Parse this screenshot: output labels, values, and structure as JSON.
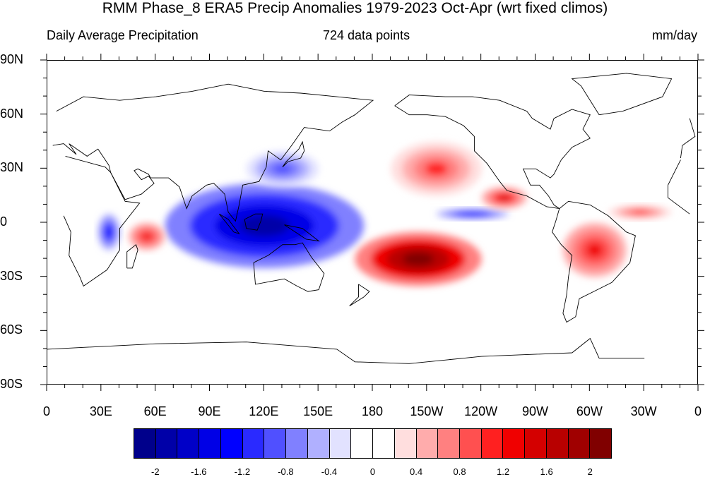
{
  "title": "RMM Phase_8 ERA5 Precip Anomalies 1979-2023 Oct-Apr (wrt fixed climos)",
  "subtitle_left": "Daily Average Precipitation",
  "subtitle_center": "724 data points",
  "subtitle_right": "mm/day",
  "map": {
    "lat_labels": [
      "90N",
      "60N",
      "30N",
      "0",
      "30S",
      "60S",
      "90S"
    ],
    "lon_labels": [
      "0",
      "30E",
      "60E",
      "90E",
      "120E",
      "150E",
      "180",
      "150W",
      "120W",
      "90W",
      "60W",
      "30W",
      "0"
    ],
    "anomaly_regions": [
      {
        "name": "Indian Ocean / Maritime Continent dry",
        "lon": [
          65,
          175
        ],
        "lat": [
          -25,
          22
        ],
        "sign": "negative",
        "peak": -2.0
      },
      {
        "name": "East Africa dry",
        "lon": [
          28,
          40
        ],
        "lat": [
          -15,
          5
        ],
        "sign": "negative",
        "peak": -1.4
      },
      {
        "name": "East Asia / NW Pacific dry",
        "lon": [
          110,
          150
        ],
        "lat": [
          20,
          40
        ],
        "sign": "negative",
        "peak": -1.0
      },
      {
        "name": "Equatorial eastern Pacific dry",
        "lon": [
          215,
          255
        ],
        "lat": [
          2,
          8
        ],
        "sign": "negative",
        "peak": -1.4
      },
      {
        "name": "SPCZ wet",
        "lon": [
          170,
          240
        ],
        "lat": [
          -35,
          -5
        ],
        "sign": "positive",
        "peak": 2.2
      },
      {
        "name": "North Pacific wet",
        "lon": [
          190,
          240
        ],
        "lat": [
          15,
          45
        ],
        "sign": "positive",
        "peak": 1.0
      },
      {
        "name": "Subtropical NE Pacific wet",
        "lon": [
          240,
          265
        ],
        "lat": [
          8,
          20
        ],
        "sign": "positive",
        "peak": 1.4
      },
      {
        "name": "Western Indian Ocean wet",
        "lon": [
          45,
          65
        ],
        "lat": [
          -15,
          0
        ],
        "sign": "positive",
        "peak": 1.2
      },
      {
        "name": "South America wet",
        "lon": [
          285,
          320
        ],
        "lat": [
          -30,
          0
        ],
        "sign": "positive",
        "peak": 1.2
      },
      {
        "name": "Tropical Atlantic wet",
        "lon": [
          310,
          345
        ],
        "lat": [
          2,
          10
        ],
        "sign": "positive",
        "peak": 1.0
      }
    ]
  },
  "colorbar": {
    "colors": [
      "#00008b",
      "#0000a8",
      "#0000c8",
      "#0000e6",
      "#0000ff",
      "#2a2aff",
      "#5050ff",
      "#8080ff",
      "#b0b0ff",
      "#e2e2ff",
      "#ffffff",
      "#ffffff",
      "#ffdede",
      "#ffacac",
      "#ff8080",
      "#ff5050",
      "#ff2020",
      "#f00000",
      "#d40000",
      "#b80000",
      "#a00000",
      "#800000"
    ],
    "labels": [
      "-2",
      "-1.6",
      "-1.2",
      "-0.8",
      "-0.4",
      "0",
      "0.4",
      "0.8",
      "1.2",
      "1.6",
      "2"
    ],
    "label_values": [
      -2,
      -1.6,
      -1.2,
      -0.8,
      -0.4,
      0,
      0.4,
      0.8,
      1.2,
      1.6,
      2
    ]
  }
}
